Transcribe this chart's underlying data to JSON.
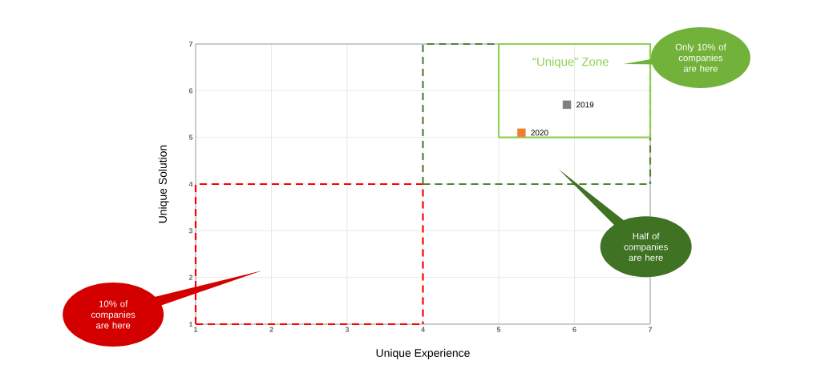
{
  "chart_data": {
    "type": "scatter",
    "xlabel": "Unique Experience",
    "ylabel": "Unique Solution",
    "xlim": [
      1,
      7
    ],
    "ylim": [
      1,
      7
    ],
    "xticks": [
      1,
      2,
      3,
      4,
      5,
      6,
      7
    ],
    "yticks": [
      1,
      2,
      3,
      4,
      5,
      6,
      7
    ],
    "grid": true,
    "legend": false,
    "marker": "square",
    "series": [
      {
        "type": "line",
        "marker": "none",
        "color": "#ff0000",
        "line_style": "dashed",
        "x": [
          1,
          1,
          4,
          4
        ],
        "values": [
          1,
          4,
          4,
          1
        ]
      },
      {
        "type": "line",
        "marker": "none",
        "color": "#ff0000",
        "line_style": "dashed",
        "x": [
          1,
          4
        ],
        "values": [
          1,
          1
        ]
      },
      {
        "type": "line",
        "marker": "none",
        "color": "#548235",
        "line_style": "dashed",
        "x": [
          4,
          4,
          7,
          7
        ],
        "values": [
          4,
          7,
          7,
          4
        ]
      },
      {
        "type": "line",
        "marker": "none",
        "color": "#548235",
        "line_style": "dashed",
        "x": [
          4,
          7
        ],
        "values": [
          4,
          4
        ]
      },
      {
        "type": "line",
        "marker": "none",
        "color": "#92d050",
        "line_style": "solid",
        "x": [
          5,
          5,
          7,
          7
        ],
        "values": [
          5,
          7,
          7,
          5
        ]
      },
      {
        "type": "line",
        "marker": "none",
        "color": "#92d050",
        "line_style": "solid",
        "x": [
          5,
          7
        ],
        "values": [
          5,
          5
        ]
      },
      {
        "name": "2019",
        "color": "#7f7f7f",
        "x": [
          5.9
        ],
        "values": [
          5.7
        ]
      },
      {
        "name": "2020",
        "color": "#ed7d31",
        "x": [
          5.3
        ],
        "values": [
          5.1
        ]
      }
    ],
    "annotations": [
      "“Unique” Zone",
      "Only 10% of companies are here",
      "Half of companies are here",
      "10% of companies are here"
    ]
  }
}
